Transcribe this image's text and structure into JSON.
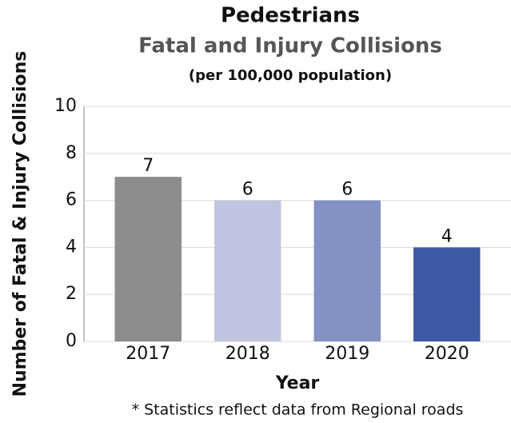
{
  "chart_data": {
    "type": "bar",
    "title": "Pedestrians",
    "subtitle": "Fatal and Injury Collisions",
    "note": "(per 100,000 population)",
    "categories": [
      "2017",
      "2018",
      "2019",
      "2020"
    ],
    "values": [
      7,
      6,
      6,
      4
    ],
    "colors": [
      "#8c8c8c",
      "#c0c4e0",
      "#8491c4",
      "#3b5aa3"
    ],
    "ylim": [
      0,
      10
    ],
    "yticks": [
      0,
      2,
      4,
      6,
      8,
      10
    ],
    "grid": true,
    "xlabel": "Year",
    "ylabel": "Number of Fatal & Injury Collisions",
    "footnote": "* Statistics reflect data from Regional roads"
  }
}
